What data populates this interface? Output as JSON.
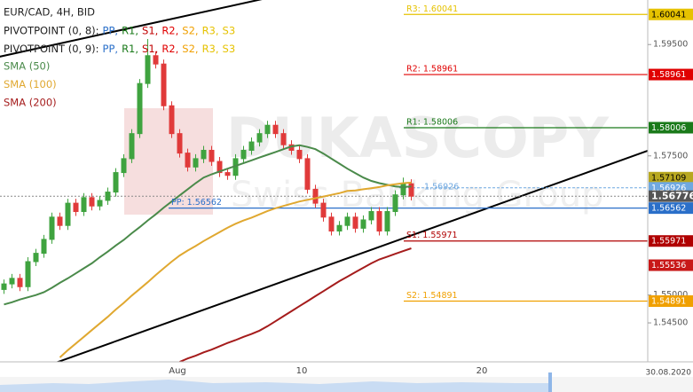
{
  "chart_data": {
    "type": "candlestick",
    "title": "EUR/CAD, 4H, BID",
    "indicators": [
      {
        "label": "PIVOTPOINT (0, 8):",
        "items": [
          {
            "text": "PP,",
            "color": "#2a6fc9"
          },
          {
            "text": "R1,",
            "color": "#1a7a1a"
          },
          {
            "text": "S1,",
            "color": "#c00000"
          },
          {
            "text": "R2,",
            "color": "#e00000"
          },
          {
            "text": "S2,",
            "color": "#f0a000"
          },
          {
            "text": "R3,",
            "color": "#e6c200"
          },
          {
            "text": "S3",
            "color": "#e6c200"
          }
        ]
      },
      {
        "label": "PIVOTPOINT (0, 9):",
        "items": [
          {
            "text": "PP,",
            "color": "#2a6fc9"
          },
          {
            "text": "R1,",
            "color": "#1a7a1a"
          },
          {
            "text": "S1,",
            "color": "#c00000"
          },
          {
            "text": "R2,",
            "color": "#e00000"
          },
          {
            "text": "S2,",
            "color": "#f0a000"
          },
          {
            "text": "R3,",
            "color": "#e6c200"
          },
          {
            "text": "S3",
            "color": "#e6c200"
          }
        ]
      }
    ],
    "xtick_labels": [
      "Aug",
      "10",
      "20"
    ],
    "date_label": "30.08.2020",
    "watermark": [
      "DUKASCOPY",
      "Swiss Banking Group"
    ],
    "up_color": "#3fa33f",
    "down_color": "#e03a3a",
    "open": [
      1.551,
      1.552,
      1.553,
      1.5515,
      1.556,
      1.5575,
      1.56,
      1.564,
      1.5625,
      1.5665,
      1.565,
      1.5675,
      1.566,
      1.567,
      1.5685,
      1.572,
      1.5745,
      1.579,
      1.588,
      1.593,
      1.5915,
      1.584,
      1.579,
      1.5755,
      1.573,
      1.5745,
      1.576,
      1.574,
      1.572,
      1.5715,
      1.5745,
      1.576,
      1.5775,
      1.579,
      1.5805,
      1.579,
      1.577,
      1.576,
      1.5745,
      1.569,
      1.5665,
      1.564,
      1.5615,
      1.5625,
      1.564,
      1.562,
      1.5635,
      1.565,
      1.5615,
      1.565,
      1.568,
      1.57
    ],
    "high": [
      1.5528,
      1.5538,
      1.5538,
      1.5568,
      1.5583,
      1.5608,
      1.5648,
      1.5648,
      1.5673,
      1.5673,
      1.5683,
      1.5683,
      1.5678,
      1.5693,
      1.5728,
      1.5753,
      1.5798,
      1.5888,
      1.596,
      1.5938,
      1.5923,
      1.5848,
      1.5798,
      1.5763,
      1.5753,
      1.5768,
      1.5768,
      1.5748,
      1.5728,
      1.5753,
      1.5768,
      1.5783,
      1.5798,
      1.5813,
      1.5813,
      1.5798,
      1.5778,
      1.5768,
      1.5753,
      1.5698,
      1.5673,
      1.5648,
      1.5633,
      1.5648,
      1.5648,
      1.5643,
      1.5658,
      1.5658,
      1.5658,
      1.5688,
      1.5711,
      1.5708
    ],
    "low": [
      1.5502,
      1.5512,
      1.5507,
      1.5507,
      1.5552,
      1.5567,
      1.5592,
      1.5617,
      1.5617,
      1.5642,
      1.5642,
      1.5652,
      1.5652,
      1.5662,
      1.5677,
      1.5712,
      1.5737,
      1.5782,
      1.5872,
      1.5907,
      1.5832,
      1.5782,
      1.5747,
      1.5722,
      1.5722,
      1.5737,
      1.5732,
      1.5712,
      1.5707,
      1.5707,
      1.5737,
      1.5752,
      1.5767,
      1.5782,
      1.5782,
      1.5762,
      1.5752,
      1.5737,
      1.5682,
      1.5657,
      1.5632,
      1.5607,
      1.5607,
      1.5617,
      1.5612,
      1.5612,
      1.5627,
      1.5607,
      1.5607,
      1.5642,
      1.5672,
      1.567
    ],
    "close": [
      1.552,
      1.553,
      1.5515,
      1.556,
      1.5575,
      1.56,
      1.564,
      1.5625,
      1.5665,
      1.565,
      1.5675,
      1.566,
      1.567,
      1.5685,
      1.572,
      1.5745,
      1.579,
      1.588,
      1.593,
      1.5915,
      1.584,
      1.579,
      1.5755,
      1.573,
      1.5745,
      1.576,
      1.574,
      1.572,
      1.5715,
      1.5745,
      1.576,
      1.5775,
      1.579,
      1.5805,
      1.579,
      1.577,
      1.576,
      1.5745,
      1.569,
      1.5665,
      1.564,
      1.5615,
      1.5625,
      1.564,
      1.562,
      1.5635,
      1.565,
      1.5615,
      1.565,
      1.568,
      1.57,
      1.56776
    ],
    "series": [
      {
        "name": "SMA (50)",
        "color": "#4a8a4a",
        "values": [
          1.5483,
          1.5487,
          1.5492,
          1.5496,
          1.55,
          1.5505,
          1.5513,
          1.5522,
          1.553,
          1.5539,
          1.5548,
          1.5557,
          1.5568,
          1.5578,
          1.5589,
          1.5599,
          1.5611,
          1.5622,
          1.5634,
          1.5645,
          1.5657,
          1.5668,
          1.5679,
          1.569,
          1.5701,
          1.5711,
          1.5717,
          1.5722,
          1.5727,
          1.5732,
          1.5737,
          1.5742,
          1.5747,
          1.5752,
          1.5757,
          1.5762,
          1.5767,
          1.5769,
          1.5766,
          1.5762,
          1.5754,
          1.5745,
          1.5736,
          1.5727,
          1.5719,
          1.5711,
          1.5705,
          1.5701,
          1.5698,
          1.5695,
          1.5694,
          1.5695
        ]
      },
      {
        "name": "SMA (100)",
        "color": "#e0a830",
        "values": [
          null,
          null,
          null,
          null,
          null,
          null,
          null,
          1.5388,
          1.5401,
          1.5413,
          1.5425,
          1.5437,
          1.5449,
          1.5461,
          1.5474,
          1.5486,
          1.5499,
          1.5511,
          1.5523,
          1.5536,
          1.5548,
          1.556,
          1.5571,
          1.558,
          1.5588,
          1.5597,
          1.5605,
          1.5613,
          1.5621,
          1.5628,
          1.5634,
          1.5639,
          1.5645,
          1.5651,
          1.5656,
          1.566,
          1.5664,
          1.5668,
          1.5671,
          1.5674,
          1.5677,
          1.568,
          1.5683,
          1.5687,
          1.5688,
          1.569,
          1.5692,
          1.5694,
          1.5697,
          1.5699,
          1.5701,
          1.5702
        ]
      },
      {
        "name": "SMA (200)",
        "color": "#a51c1c",
        "values": [
          null,
          null,
          null,
          null,
          null,
          null,
          null,
          null,
          null,
          null,
          null,
          null,
          null,
          null,
          null,
          null,
          null,
          null,
          null,
          null,
          null,
          null,
          1.538,
          1.5386,
          1.5391,
          1.5397,
          1.5402,
          1.5408,
          1.5414,
          1.5419,
          1.5425,
          1.543,
          1.5436,
          1.5444,
          1.5453,
          1.5462,
          1.5471,
          1.548,
          1.5489,
          1.5498,
          1.5507,
          1.5516,
          1.5525,
          1.5533,
          1.5541,
          1.5549,
          1.5557,
          1.5564,
          1.5569,
          1.5574,
          1.5579,
          1.5584
        ]
      }
    ],
    "pivots": [
      {
        "label": "R3: 1.60041",
        "value": 1.60041,
        "color": "#e6c200",
        "text_color": "#000000",
        "long": false
      },
      {
        "label": "R2: 1.58961",
        "value": 1.58961,
        "color": "#e00000",
        "text_color": "#ffffff",
        "long": false
      },
      {
        "label": "R1: 1.58006",
        "value": 1.58006,
        "color": "#1a7a1a",
        "text_color": "#ffffff",
        "long": false
      },
      {
        "label": "PP: 1.56562",
        "value": 1.56562,
        "color": "#2a6fc9",
        "text_color": "#ffffff",
        "long": true
      },
      {
        "label": "S1: 1.55971",
        "value": 1.55971,
        "color": "#b00000",
        "text_color": "#ffffff",
        "long": false
      },
      {
        "label": "S2: 1.54891",
        "value": 1.54891,
        "color": "#f0a000",
        "text_color": "#ffffff",
        "long": false
      }
    ],
    "markers": [
      {
        "value": 1.57109,
        "color": "#b8a820",
        "text_color": "#000000"
      },
      {
        "value": 1.56926,
        "color": "#6fa8e0",
        "text_color": "#ffffff"
      },
      {
        "value": 1.56776,
        "color": "#555555",
        "text_color": "#ffffff"
      },
      {
        "value": 1.55536,
        "color": "#c81818",
        "text_color": "#ffffff"
      }
    ],
    "ylim": [
      1.538,
      1.603
    ],
    "yticks": [
      {
        "value": 1.545,
        "label": "1.54500"
      },
      {
        "value": 1.55,
        "label": "1.55000"
      },
      {
        "value": 1.575,
        "label": "1.57500"
      },
      {
        "value": 1.595,
        "label": "1.59500"
      }
    ]
  }
}
